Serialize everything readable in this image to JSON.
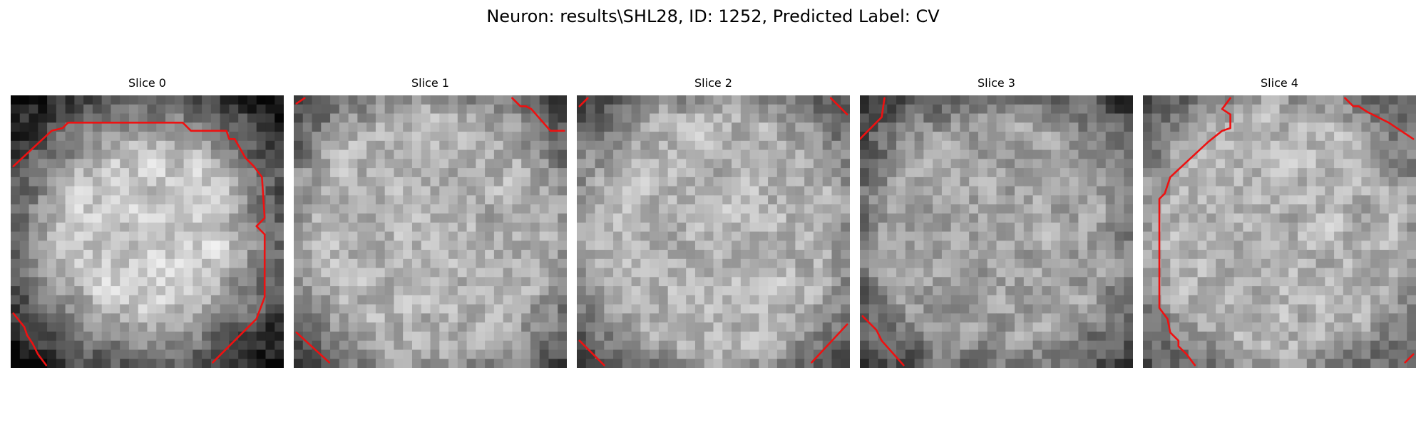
{
  "figure": {
    "title": "Neuron: results\\SHL28, ID: 1252, Predicted Label: CV"
  },
  "slices": [
    {
      "title": "Slice 0",
      "seed": 11,
      "profile": "blob",
      "contours": [
        [
          [
            0.01,
            0.26
          ],
          [
            0.15,
            0.13
          ],
          [
            0.19,
            0.12
          ],
          [
            0.21,
            0.1
          ],
          [
            0.63,
            0.1
          ],
          [
            0.66,
            0.13
          ],
          [
            0.79,
            0.13
          ],
          [
            0.8,
            0.16
          ],
          [
            0.82,
            0.16
          ],
          [
            0.86,
            0.23
          ],
          [
            0.89,
            0.26
          ],
          [
            0.92,
            0.3
          ],
          [
            0.93,
            0.45
          ],
          [
            0.91,
            0.47
          ],
          [
            0.9,
            0.48
          ],
          [
            0.93,
            0.51
          ],
          [
            0.93,
            0.74
          ],
          [
            0.9,
            0.82
          ],
          [
            0.74,
            0.98
          ]
        ],
        [
          [
            0.01,
            0.8
          ],
          [
            0.05,
            0.85
          ],
          [
            0.06,
            0.88
          ],
          [
            0.08,
            0.91
          ],
          [
            0.1,
            0.95
          ],
          [
            0.13,
            0.99
          ]
        ]
      ]
    },
    {
      "title": "Slice 1",
      "seed": 23,
      "profile": "uniform",
      "contours": [
        [
          [
            0.8,
            0.01
          ],
          [
            0.83,
            0.04
          ],
          [
            0.85,
            0.04
          ],
          [
            0.87,
            0.05
          ],
          [
            0.94,
            0.13
          ],
          [
            0.99,
            0.13
          ]
        ],
        [
          [
            0.01,
            0.03
          ],
          [
            0.04,
            0.01
          ]
        ],
        [
          [
            0.01,
            0.87
          ],
          [
            0.13,
            0.98
          ]
        ]
      ]
    },
    {
      "title": "Slice 2",
      "seed": 37,
      "profile": "uniform",
      "contours": [
        [
          [
            0.01,
            0.04
          ],
          [
            0.04,
            0.01
          ]
        ],
        [
          [
            0.93,
            0.01
          ],
          [
            0.99,
            0.07
          ]
        ],
        [
          [
            0.01,
            0.9
          ],
          [
            0.1,
            0.99
          ]
        ],
        [
          [
            0.86,
            0.98
          ],
          [
            0.99,
            0.84
          ]
        ]
      ]
    },
    {
      "title": "Slice 3",
      "seed": 49,
      "profile": "darker",
      "contours": [
        [
          [
            0.0,
            0.16
          ],
          [
            0.08,
            0.08
          ],
          [
            0.09,
            0.01
          ]
        ],
        [
          [
            0.01,
            0.81
          ],
          [
            0.06,
            0.86
          ],
          [
            0.08,
            0.9
          ],
          [
            0.16,
            0.99
          ]
        ]
      ]
    },
    {
      "title": "Slice 4",
      "seed": 61,
      "profile": "uniform",
      "contours": [
        [
          [
            0.32,
            0.01
          ],
          [
            0.29,
            0.05
          ],
          [
            0.32,
            0.07
          ],
          [
            0.32,
            0.12
          ],
          [
            0.29,
            0.13
          ],
          [
            0.24,
            0.17
          ],
          [
            0.1,
            0.3
          ],
          [
            0.08,
            0.36
          ],
          [
            0.06,
            0.38
          ],
          [
            0.06,
            0.78
          ],
          [
            0.09,
            0.82
          ],
          [
            0.1,
            0.87
          ],
          [
            0.13,
            0.9
          ],
          [
            0.13,
            0.92
          ],
          [
            0.16,
            0.95
          ],
          [
            0.19,
            0.99
          ]
        ],
        [
          [
            0.74,
            0.01
          ],
          [
            0.77,
            0.04
          ],
          [
            0.79,
            0.04
          ],
          [
            0.82,
            0.06
          ],
          [
            0.86,
            0.08
          ],
          [
            0.88,
            0.09
          ],
          [
            0.9,
            0.1
          ],
          [
            0.99,
            0.16
          ]
        ],
        [
          [
            0.96,
            0.98
          ],
          [
            0.99,
            0.95
          ]
        ]
      ]
    }
  ],
  "colors": {
    "contour": "#ee1111",
    "title_text": "#000000"
  }
}
